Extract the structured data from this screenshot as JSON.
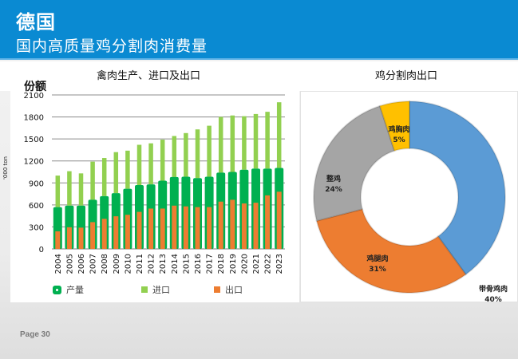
{
  "header": {
    "title": "德国",
    "subtitle": "国内高质量鸡分割肉消费量"
  },
  "footer": {
    "page": "Page 30"
  },
  "colors": {
    "header": "#0a8ad2",
    "production": "#00b050",
    "import": "#92d050",
    "export": "#ed7d31",
    "donut": [
      "#5b9bd5",
      "#ed7d31",
      "#a5a5a5",
      "#ffc000"
    ]
  },
  "chart_data": [
    {
      "type": "bar",
      "title": "禽肉生产、进口及出口",
      "ytitle": "份额",
      "ylabel": "'000 ton",
      "xlabel": "",
      "ylim": [
        0,
        2100
      ],
      "yticks": [
        "0",
        "300",
        "600",
        "900",
        "1200",
        "1500",
        "1800",
        "2100"
      ],
      "grid": true,
      "legend_position": "bottom",
      "categories": [
        "2004",
        "2005",
        "2006",
        "2007",
        "2008",
        "2009",
        "2010",
        "2011",
        "2012",
        "2013",
        "2014",
        "2015",
        "2016",
        "2017",
        "2018",
        "2019",
        "2020",
        "2021",
        "2022",
        "2023"
      ],
      "series": [
        {
          "name": "产量",
          "kind": "base",
          "values": [
            570,
            590,
            590,
            670,
            720,
            760,
            820,
            870,
            880,
            930,
            980,
            985,
            965,
            985,
            1040,
            1050,
            1080,
            1095,
            1095,
            1105
          ]
        },
        {
          "name": "进口",
          "kind": "stacked-total",
          "values": [
            1000,
            1060,
            1030,
            1190,
            1240,
            1320,
            1340,
            1420,
            1440,
            1490,
            1540,
            1580,
            1630,
            1680,
            1800,
            1820,
            1810,
            1840,
            1870,
            2000
          ]
        },
        {
          "name": "出口",
          "kind": "overlay",
          "values": [
            240,
            295,
            290,
            365,
            410,
            445,
            465,
            505,
            550,
            550,
            590,
            580,
            570,
            570,
            645,
            670,
            620,
            630,
            730,
            780
          ]
        }
      ]
    },
    {
      "type": "pie",
      "donut": true,
      "title": "鸡分割肉出口",
      "slices": [
        {
          "label": "带骨鸡肉",
          "value": 40,
          "display": "40%"
        },
        {
          "label": "鸡腿肉",
          "value": 31,
          "display": "31%"
        },
        {
          "label": "整鸡",
          "value": 24,
          "display": "24%"
        },
        {
          "label": "鸡胸肉",
          "value": 5,
          "display": "5%"
        }
      ]
    }
  ]
}
